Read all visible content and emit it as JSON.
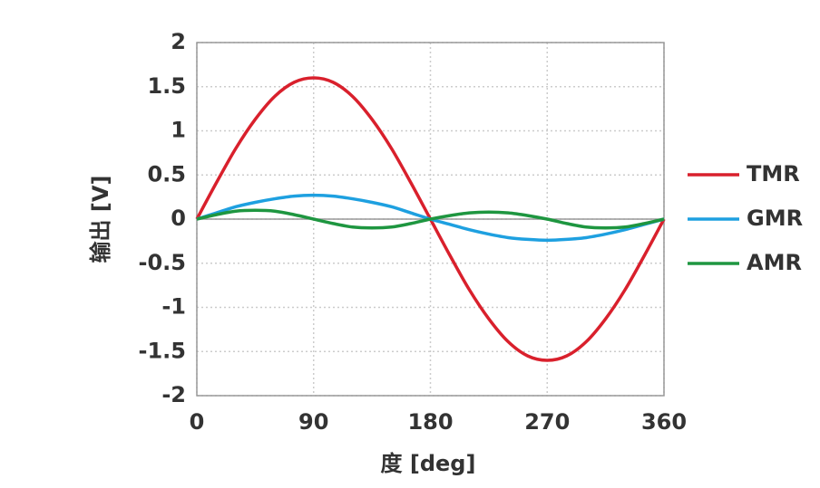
{
  "chart_data": {
    "type": "line",
    "x_label": "度 [deg]",
    "y_label": "输出 [V]",
    "x": [
      0,
      15,
      30,
      45,
      60,
      75,
      90,
      105,
      120,
      135,
      150,
      165,
      180,
      195,
      210,
      225,
      240,
      255,
      270,
      285,
      300,
      315,
      330,
      345,
      360
    ],
    "series": [
      {
        "name": "TMR",
        "color": "#d9202c",
        "values": [
          0,
          0.41,
          0.8,
          1.13,
          1.39,
          1.55,
          1.6,
          1.55,
          1.39,
          1.13,
          0.8,
          0.41,
          0,
          -0.41,
          -0.8,
          -1.13,
          -1.39,
          -1.55,
          -1.6,
          -1.55,
          -1.39,
          -1.13,
          -0.8,
          -0.41,
          0
        ]
      },
      {
        "name": "GMR",
        "color": "#1ea0e0",
        "values": [
          0,
          0.07,
          0.14,
          0.19,
          0.23,
          0.26,
          0.27,
          0.26,
          0.23,
          0.19,
          0.14,
          0.07,
          0,
          -0.06,
          -0.12,
          -0.17,
          -0.21,
          -0.23,
          -0.24,
          -0.23,
          -0.21,
          -0.17,
          -0.12,
          -0.06,
          0
        ]
      },
      {
        "name": "AMR",
        "color": "#1e9640",
        "values": [
          0,
          0.05,
          0.09,
          0.1,
          0.09,
          0.05,
          0,
          -0.05,
          -0.09,
          -0.1,
          -0.09,
          -0.05,
          0,
          0.04,
          0.07,
          0.08,
          0.07,
          0.04,
          0,
          -0.05,
          -0.09,
          -0.1,
          -0.09,
          -0.05,
          0
        ]
      }
    ],
    "xlim": [
      0,
      360
    ],
    "xticks": [
      0,
      90,
      180,
      270,
      360
    ],
    "ylim": [
      -2,
      2
    ],
    "yticks": [
      2,
      1.5,
      1,
      0.5,
      0,
      -0.5,
      -1,
      -1.5,
      -2
    ],
    "grid": true,
    "legend": "right"
  }
}
